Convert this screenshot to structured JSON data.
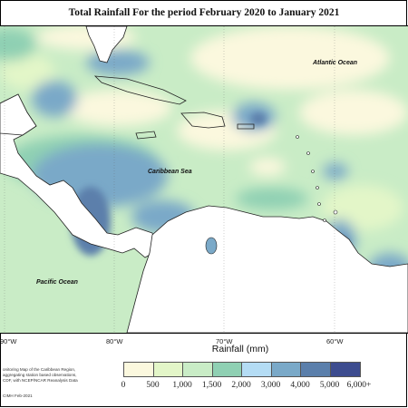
{
  "title": "Total Rainfall For the period February 2020 to January 2021",
  "map": {
    "labels": {
      "atlantic": "Atlantic Ocean",
      "caribbean": "Caribbean Sea",
      "pacific": "Pacific Ocean"
    },
    "longitudes": [
      "90°W",
      "80°W",
      "70°W",
      "60°W"
    ]
  },
  "legend": {
    "title": "Rainfall (mm)",
    "ticks": [
      "0",
      "500",
      "1,000",
      "1,500",
      "2,000",
      "3,000",
      "4,000",
      "5,000",
      "6,000+"
    ],
    "colors": [
      "#fbf8de",
      "#e3f6c8",
      "#c9ecc6",
      "#8fd0b3",
      "#b4dcf4",
      "#7aa9c8",
      "#5b7fab",
      "#3d4c8f"
    ]
  },
  "credits": {
    "lines": [
      "onitoring Map of the Caribbean Region,",
      "aggregating station based observations,",
      "CDF, with NCEP/NCAR Reanalysis Data"
    ],
    "stamp": "CIMH Feb-2021"
  }
}
